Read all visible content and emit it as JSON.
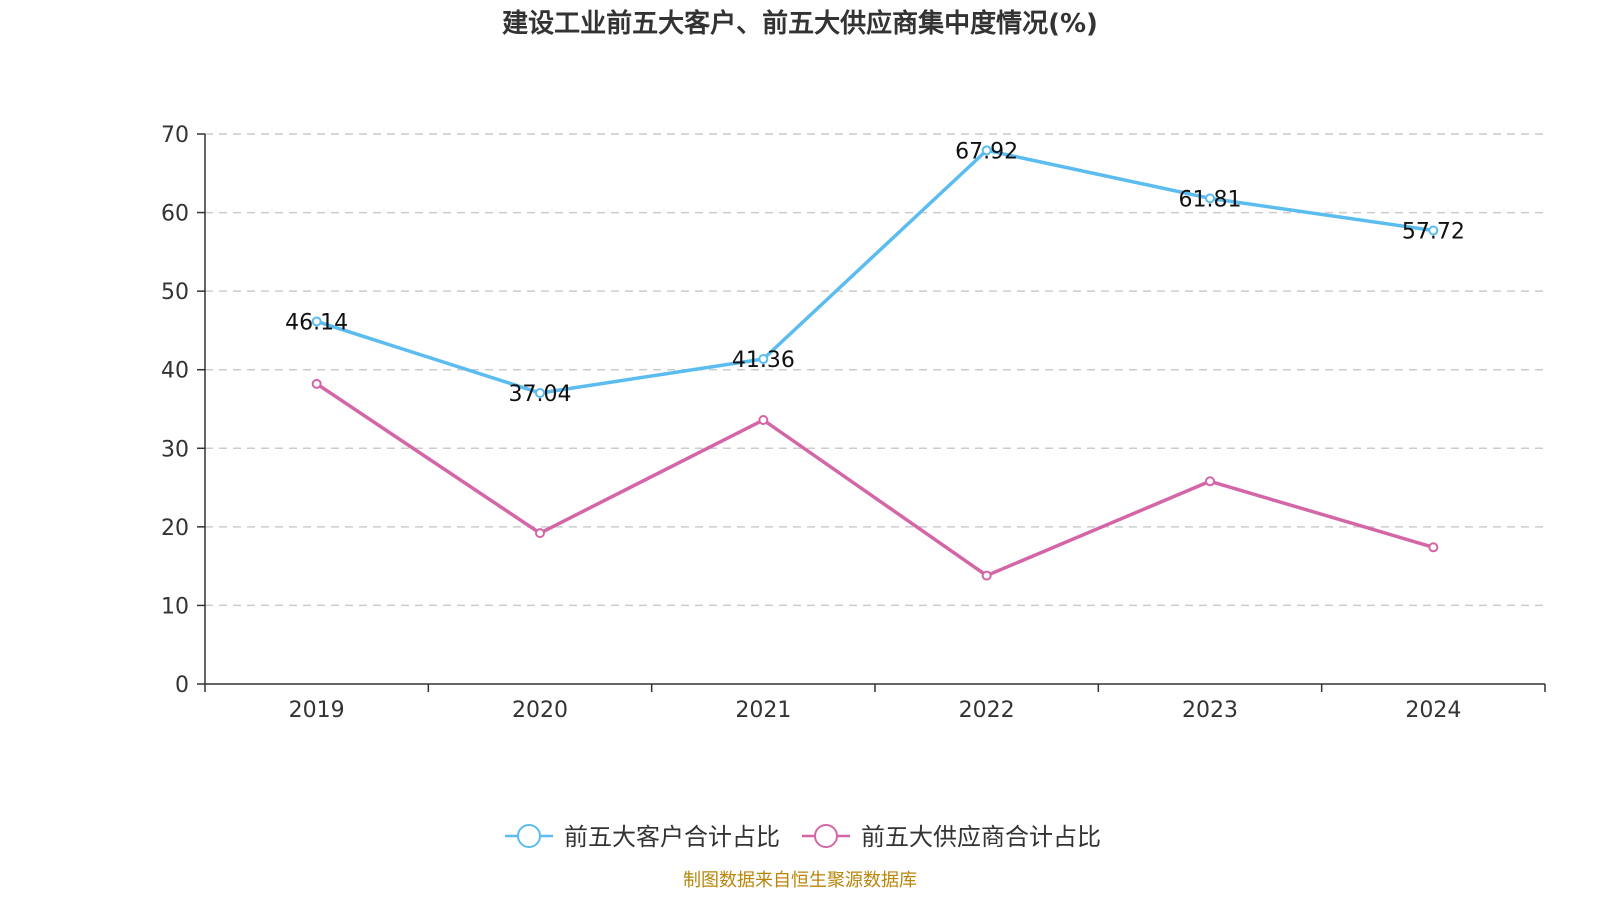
{
  "colors": {
    "customer": "#5bbcf0",
    "supplier": "#d466a8",
    "grid": "#cccccc",
    "axis": "#333333",
    "source": "#b8860b"
  },
  "chart_data": {
    "type": "line",
    "title": "建设工业前五大客户、前五大供应商集中度情况(%)",
    "categories": [
      "2019",
      "2020",
      "2021",
      "2022",
      "2023",
      "2024"
    ],
    "yticks": [
      "0",
      "10",
      "20",
      "30",
      "40",
      "50",
      "60",
      "70"
    ],
    "ylim": [
      0,
      70
    ],
    "grid": true,
    "legend_position": "bottom-center",
    "series": [
      {
        "name": "前五大客户合计占比",
        "values": [
          46.14,
          37.04,
          41.36,
          67.92,
          61.81,
          57.72
        ],
        "labels": [
          "46.14",
          "37.04",
          "41.36",
          "67.92",
          "61.81",
          "57.72"
        ],
        "color": "#5bbcf0"
      },
      {
        "name": "前五大供应商合计占比",
        "values": [
          38.2,
          19.2,
          33.6,
          13.8,
          25.8,
          17.4
        ],
        "color": "#d466a8"
      }
    ],
    "source": "制图数据来自恒生聚源数据库"
  }
}
